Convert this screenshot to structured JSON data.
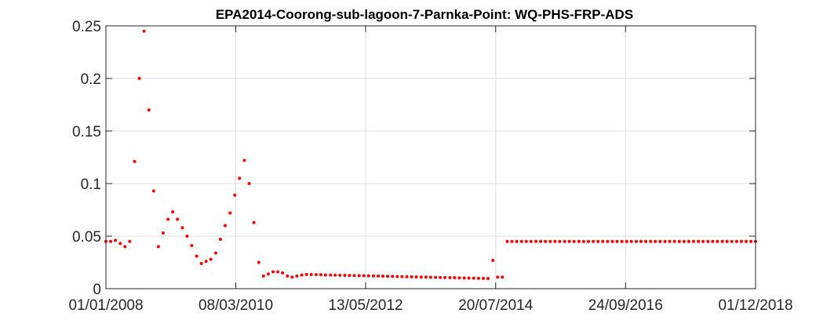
{
  "chart_data": {
    "type": "scatter",
    "title": "EPA2014-Coorong-sub-lagoon-7-Parnka-Point: WQ-PHS-FRP-ADS",
    "xlabel": "",
    "ylabel": "",
    "x_is_date": true,
    "xlim": [
      "2008-01-01",
      "2018-12-01"
    ],
    "ylim": [
      0,
      0.25
    ],
    "grid": true,
    "legend": "none",
    "marker_color": "#ff0000",
    "xticks": [
      {
        "date": "2008-01-01",
        "label": "01/01/2008"
      },
      {
        "date": "2010-03-08",
        "label": "08/03/2010"
      },
      {
        "date": "2012-05-13",
        "label": "13/05/2012"
      },
      {
        "date": "2014-07-20",
        "label": "20/07/2014"
      },
      {
        "date": "2016-09-24",
        "label": "24/09/2016"
      },
      {
        "date": "2018-12-01",
        "label": "01/12/2018"
      }
    ],
    "yticks": [
      {
        "value": 0,
        "label": "0"
      },
      {
        "value": 0.05,
        "label": "0.05"
      },
      {
        "value": 0.1,
        "label": "0.1"
      },
      {
        "value": 0.15,
        "label": "0.15"
      },
      {
        "value": 0.2,
        "label": "0.2"
      },
      {
        "value": 0.25,
        "label": "0.25"
      }
    ],
    "series": [
      {
        "points": [
          [
            "2008-01-01",
            0.045
          ],
          [
            "2008-01-30",
            0.045
          ],
          [
            "2008-02-28",
            0.046
          ],
          [
            "2008-03-29",
            0.043
          ],
          [
            "2008-04-27",
            0.04
          ],
          [
            "2008-05-26",
            0.045
          ],
          [
            "2008-06-25",
            0.121
          ],
          [
            "2008-07-24",
            0.2
          ],
          [
            "2008-08-22",
            0.245
          ],
          [
            "2008-09-21",
            0.17
          ],
          [
            "2008-10-20",
            0.093
          ],
          [
            "2008-11-18",
            0.04
          ],
          [
            "2008-12-17",
            0.053
          ],
          [
            "2009-01-16",
            0.066
          ],
          [
            "2009-02-14",
            0.073
          ],
          [
            "2009-03-15",
            0.066
          ],
          [
            "2009-04-14",
            0.058
          ],
          [
            "2009-05-13",
            0.05
          ],
          [
            "2009-06-11",
            0.041
          ],
          [
            "2009-07-11",
            0.031
          ],
          [
            "2009-08-09",
            0.024
          ],
          [
            "2009-09-07",
            0.026
          ],
          [
            "2009-10-06",
            0.028
          ],
          [
            "2009-11-05",
            0.034
          ],
          [
            "2009-12-04",
            0.047
          ],
          [
            "2010-01-02",
            0.06
          ],
          [
            "2010-02-01",
            0.072
          ],
          [
            "2010-03-02",
            0.089
          ],
          [
            "2010-03-31",
            0.105
          ],
          [
            "2010-04-30",
            0.122
          ],
          [
            "2010-05-29",
            0.1
          ],
          [
            "2010-06-27",
            0.063
          ],
          [
            "2010-07-27",
            0.025
          ],
          [
            "2010-08-25",
            0.012
          ],
          [
            "2010-09-23",
            0.014
          ],
          [
            "2010-10-23",
            0.016
          ],
          [
            "2010-11-21",
            0.016
          ],
          [
            "2010-12-20",
            0.015
          ],
          [
            "2011-01-19",
            0.012
          ],
          [
            "2011-02-17",
            0.011
          ],
          [
            "2011-03-18",
            0.012
          ],
          [
            "2011-04-17",
            0.013
          ],
          [
            "2011-05-16",
            0.0135
          ],
          [
            "2011-06-14",
            0.0134
          ],
          [
            "2011-07-14",
            0.0133
          ],
          [
            "2011-08-12",
            0.0132
          ],
          [
            "2011-09-10",
            0.0131
          ],
          [
            "2011-10-10",
            0.013
          ],
          [
            "2011-11-08",
            0.0129
          ],
          [
            "2011-12-07",
            0.0128
          ],
          [
            "2012-01-06",
            0.0127
          ],
          [
            "2012-02-04",
            0.0126
          ],
          [
            "2012-03-04",
            0.0125
          ],
          [
            "2012-04-03",
            0.0124
          ],
          [
            "2012-05-02",
            0.0123
          ],
          [
            "2012-05-31",
            0.0122
          ],
          [
            "2012-06-30",
            0.0121
          ],
          [
            "2012-07-29",
            0.012
          ],
          [
            "2012-08-27",
            0.0119
          ],
          [
            "2012-09-25",
            0.0118
          ],
          [
            "2012-10-25",
            0.0117
          ],
          [
            "2012-11-23",
            0.0116
          ],
          [
            "2012-12-22",
            0.0115
          ],
          [
            "2013-01-21",
            0.0114
          ],
          [
            "2013-02-19",
            0.0113
          ],
          [
            "2013-03-20",
            0.0112
          ],
          [
            "2013-04-19",
            0.0111
          ],
          [
            "2013-05-18",
            0.011
          ],
          [
            "2013-06-16",
            0.0109
          ],
          [
            "2013-07-16",
            0.0108
          ],
          [
            "2013-08-14",
            0.0107
          ],
          [
            "2013-09-12",
            0.0106
          ],
          [
            "2013-10-12",
            0.0105
          ],
          [
            "2013-11-10",
            0.0104
          ],
          [
            "2013-12-09",
            0.0103
          ],
          [
            "2014-01-08",
            0.0102
          ],
          [
            "2014-02-06",
            0.0101
          ],
          [
            "2014-03-07",
            0.01
          ],
          [
            "2014-04-06",
            0.0099
          ],
          [
            "2014-05-05",
            0.0098
          ],
          [
            "2014-06-03",
            0.0097
          ],
          [
            "2014-07-03",
            0.027
          ],
          [
            "2014-08-01",
            0.011
          ],
          [
            "2014-08-30",
            0.011
          ],
          [
            "2014-09-29",
            0.045
          ],
          [
            "2014-10-28",
            0.045
          ],
          [
            "2014-11-26",
            0.045
          ],
          [
            "2014-12-26",
            0.045
          ],
          [
            "2015-01-24",
            0.045
          ],
          [
            "2015-02-22",
            0.045
          ],
          [
            "2015-03-24",
            0.045
          ],
          [
            "2015-04-22",
            0.045
          ],
          [
            "2015-05-21",
            0.045
          ],
          [
            "2015-06-20",
            0.045
          ],
          [
            "2015-07-19",
            0.045
          ],
          [
            "2015-08-17",
            0.045
          ],
          [
            "2015-09-16",
            0.045
          ],
          [
            "2015-10-15",
            0.045
          ],
          [
            "2015-11-13",
            0.045
          ],
          [
            "2015-12-13",
            0.045
          ],
          [
            "2016-01-11",
            0.045
          ],
          [
            "2016-02-09",
            0.045
          ],
          [
            "2016-03-10",
            0.045
          ],
          [
            "2016-04-08",
            0.045
          ],
          [
            "2016-05-07",
            0.045
          ],
          [
            "2016-06-06",
            0.045
          ],
          [
            "2016-07-05",
            0.045
          ],
          [
            "2016-08-03",
            0.045
          ],
          [
            "2016-09-02",
            0.045
          ],
          [
            "2016-10-01",
            0.045
          ],
          [
            "2016-10-30",
            0.045
          ],
          [
            "2016-11-29",
            0.045
          ],
          [
            "2016-12-28",
            0.045
          ],
          [
            "2017-01-26",
            0.045
          ],
          [
            "2017-02-25",
            0.045
          ],
          [
            "2017-03-26",
            0.045
          ],
          [
            "2017-04-24",
            0.045
          ],
          [
            "2017-05-24",
            0.045
          ],
          [
            "2017-06-22",
            0.045
          ],
          [
            "2017-07-21",
            0.045
          ],
          [
            "2017-08-20",
            0.045
          ],
          [
            "2017-09-18",
            0.045
          ],
          [
            "2017-10-17",
            0.045
          ],
          [
            "2017-11-16",
            0.045
          ],
          [
            "2017-12-15",
            0.045
          ],
          [
            "2018-01-13",
            0.045
          ],
          [
            "2018-02-12",
            0.045
          ],
          [
            "2018-03-13",
            0.045
          ],
          [
            "2018-04-11",
            0.045
          ],
          [
            "2018-05-11",
            0.045
          ],
          [
            "2018-06-09",
            0.045
          ],
          [
            "2018-07-08",
            0.045
          ],
          [
            "2018-08-07",
            0.045
          ],
          [
            "2018-09-05",
            0.045
          ],
          [
            "2018-10-04",
            0.045
          ],
          [
            "2018-11-03",
            0.045
          ],
          [
            "2018-12-01",
            0.045
          ]
        ]
      }
    ]
  }
}
